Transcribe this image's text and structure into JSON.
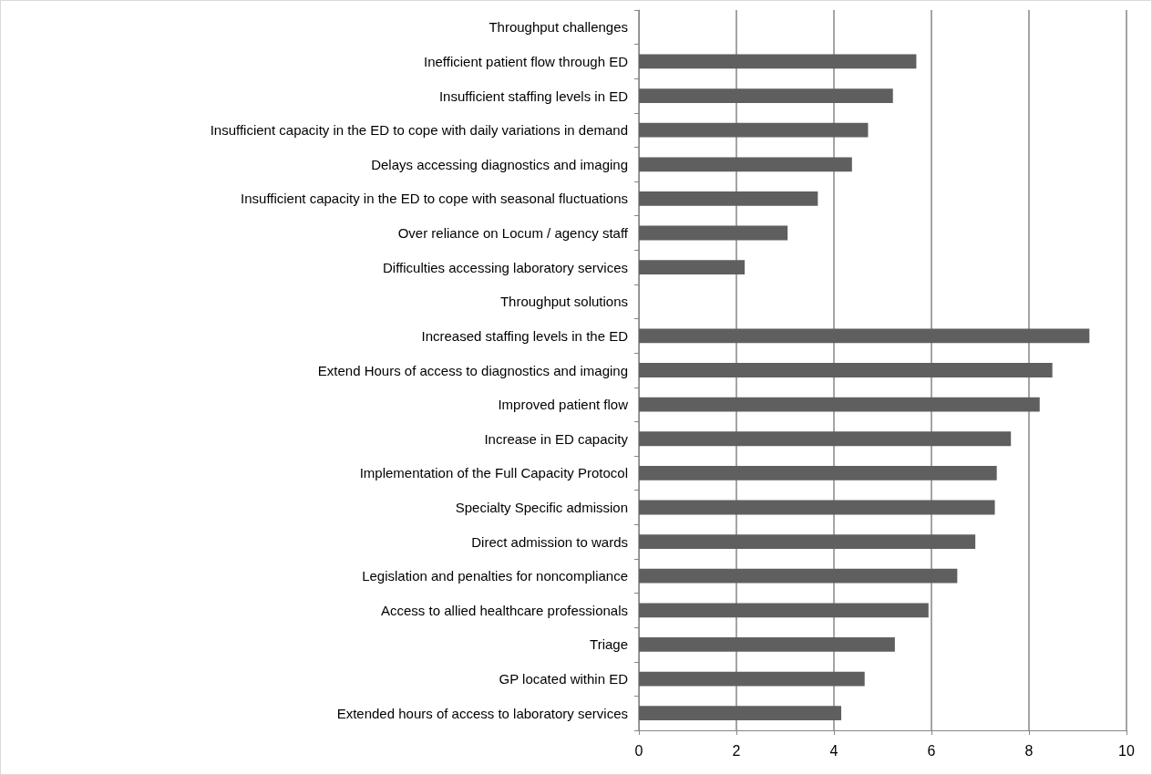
{
  "chart_data": {
    "type": "bar",
    "orientation": "horizontal",
    "categories": [
      "Throughput challenges",
      "Inefficient patient flow through ED",
      "Insufficient staffing levels in ED",
      "Insufficient capacity in the ED to cope with daily variations in demand",
      "Delays accessing diagnostics and imaging",
      "Insufficient capacity in the ED to cope with seasonal fluctuations",
      "Over reliance on Locum / agency staff",
      "Difficulties accessing laboratory services",
      "Throughput solutions",
      "Increased staffing levels in the ED",
      "Extend Hours of access to diagnostics and imaging",
      "Improved patient flow",
      "Increase in ED capacity",
      "Implementation of the Full Capacity Protocol",
      "Specialty Specific admission",
      "Direct admission to wards",
      "Legislation and penalties for noncompliance",
      "Access to allied healthcare professionals",
      "Triage",
      "GP located within ED",
      "Extended hours of access to laboratory services"
    ],
    "values": [
      null,
      5.69,
      5.21,
      4.7,
      4.37,
      3.67,
      3.05,
      2.17,
      null,
      9.24,
      8.48,
      8.22,
      7.63,
      7.34,
      7.3,
      6.9,
      6.53,
      5.94,
      5.25,
      4.63,
      4.15
    ],
    "color": "#5f5f5f",
    "xlim": [
      0,
      10
    ],
    "xticks": [
      0,
      2,
      4,
      6,
      8,
      10
    ],
    "grid": "x"
  }
}
